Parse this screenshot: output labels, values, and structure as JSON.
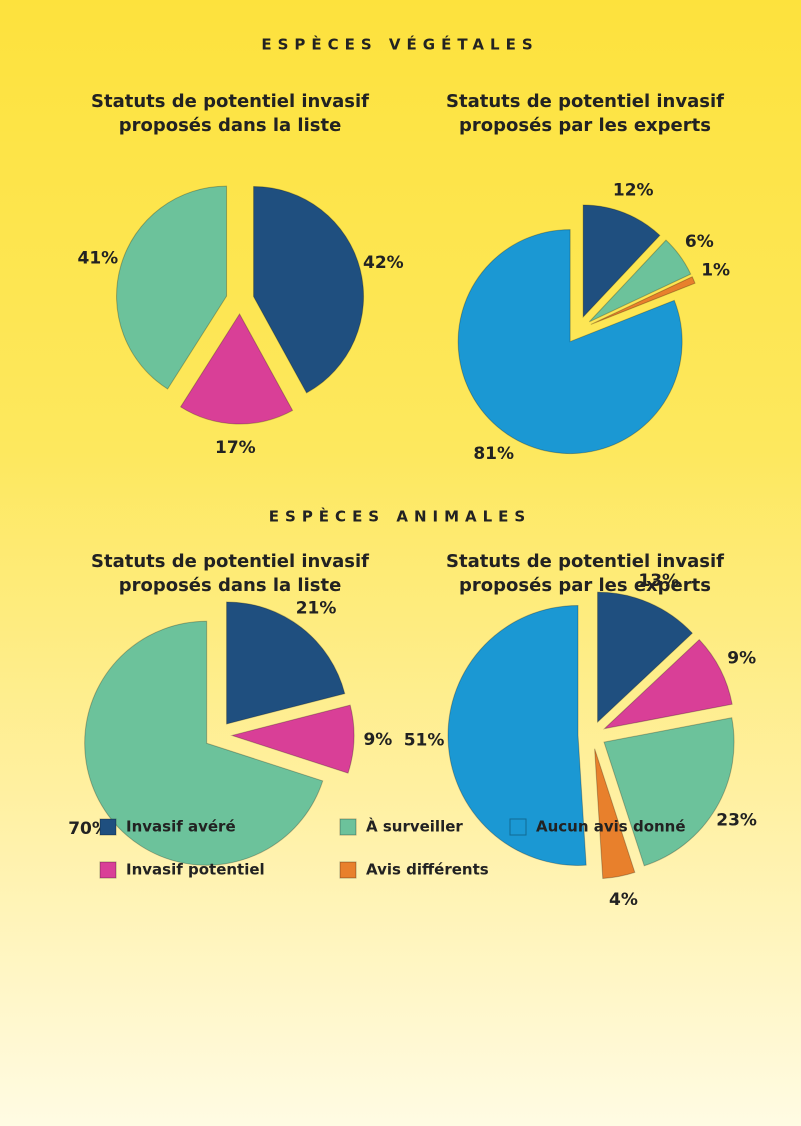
{
  "sections": [
    "ESPÈCES VÉGÉTALES",
    "ESPÈCES ANIMALES"
  ],
  "legend": [
    {
      "name": "Invasif avéré",
      "color": "#1f4f7f"
    },
    {
      "name": "À surveiller",
      "color": "#6cc29b"
    },
    {
      "name": "Aucun avis donné",
      "color": "#1b98d3"
    },
    {
      "name": "Invasif potentiel",
      "color": "#d93f97"
    },
    {
      "name": "Avis différents",
      "color": "#e8802c"
    }
  ],
  "chart_data": [
    {
      "type": "pie",
      "title": "Statuts de potentiel invasif proposés dans la liste",
      "categories": [
        "Invasif avéré",
        "Invasif potentiel",
        "À surveiller"
      ],
      "values": [
        42,
        17,
        41
      ],
      "value_labels": [
        "42%",
        "17%",
        "41%"
      ]
    },
    {
      "type": "pie",
      "title": "Statuts de potentiel invasif proposés par les experts",
      "categories": [
        "Invasif avéré",
        "À surveiller",
        "Avis différents",
        "Aucun avis donné"
      ],
      "values": [
        12,
        6,
        1,
        81
      ],
      "value_labels": [
        "12%",
        "6%",
        "1%",
        "81%"
      ]
    },
    {
      "type": "pie",
      "title": "Statuts de potentiel invasif proposés dans la liste",
      "categories": [
        "Invasif avéré",
        "Invasif potentiel",
        "À surveiller"
      ],
      "values": [
        21,
        9,
        70
      ],
      "value_labels": [
        "21%",
        "9%",
        "70%"
      ]
    },
    {
      "type": "pie",
      "title": "Statuts de potentiel invasif proposés par les experts",
      "categories": [
        "Invasif avéré",
        "Invasif potentiel",
        "À surveiller",
        "Avis différents",
        "Aucun avis donné"
      ],
      "values": [
        13,
        9,
        23,
        4,
        51
      ],
      "value_labels": [
        "13%",
        "9%",
        "23%",
        "4%",
        "51%"
      ]
    }
  ]
}
